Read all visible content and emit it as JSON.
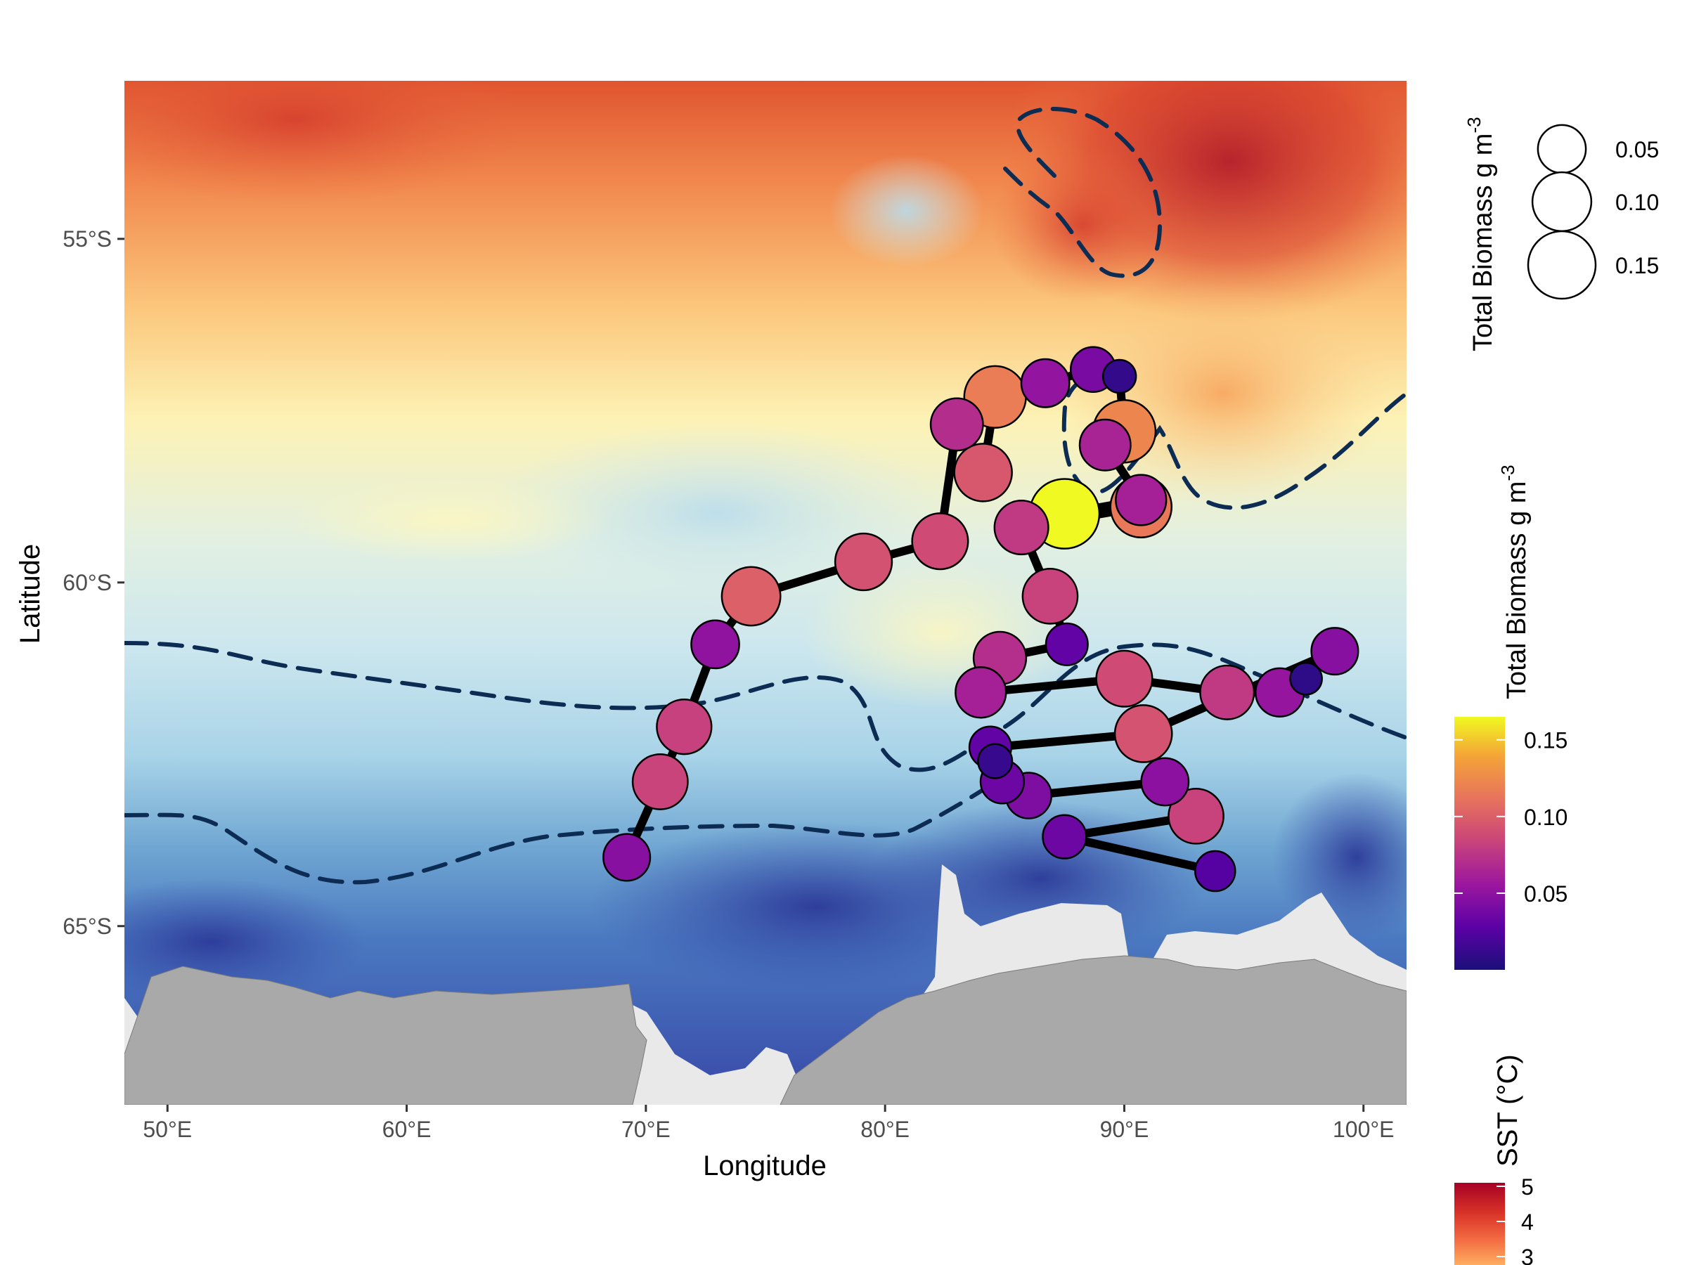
{
  "map": {
    "x_axis_title": "Longitude",
    "y_axis_title": "Latitude",
    "x_ticks": [
      "50°E",
      "60°E",
      "70°E",
      "80°E",
      "90°E",
      "100°E"
    ],
    "y_ticks": [
      "55°S",
      "60°S",
      "65°S"
    ],
    "lon_range": [
      48.2,
      101.8
    ],
    "lat_range": [
      -67.6,
      -52.7
    ],
    "x_tick_values": [
      50,
      60,
      70,
      80,
      90,
      100
    ],
    "y_tick_values": [
      -55,
      -60,
      -65
    ]
  },
  "legends": {
    "size_title": "Total Biomass g m",
    "size_superscript": "-3",
    "size_entries": [
      {
        "label": "0.05",
        "value": 0.05
      },
      {
        "label": "0.10",
        "value": 0.1
      },
      {
        "label": "0.15",
        "value": 0.15
      }
    ],
    "color_title": "Total Biomass g m",
    "color_superscript": "-3",
    "color_ticks": [
      {
        "label": "0.15",
        "value": 0.15
      },
      {
        "label": "0.10",
        "value": 0.1
      },
      {
        "label": "0.05",
        "value": 0.05
      }
    ],
    "color_range": [
      0.0,
      0.165
    ],
    "sst_title": "SST (°C)",
    "sst_ticks": [
      {
        "label": "5",
        "value": 5
      },
      {
        "label": "4",
        "value": 4
      },
      {
        "label": "3",
        "value": 3
      }
    ]
  },
  "colors": {
    "biomass_scale": [
      "#1b0f7a",
      "#5c01a6",
      "#9c179e",
      "#cc4778",
      "#e8745c",
      "#f4a636",
      "#f0f921"
    ],
    "sst_scale": [
      "#2a3e9a",
      "#4b79c0",
      "#9fcde6",
      "#fdfcc4",
      "#fdd58b",
      "#f48b4d",
      "#c9302c",
      "#a50026"
    ],
    "track": "#000000",
    "front_line": "#0d2c54",
    "land": "#a9a9a9",
    "ice_shelf": "#e9e9e9"
  },
  "chart_data": {
    "type": "scatter",
    "x_label": "Longitude",
    "y_label": "Latitude",
    "stations": [
      {
        "lon": 69.2,
        "lat": -64.0,
        "biomass": 0.046
      },
      {
        "lon": 70.6,
        "lat": -62.9,
        "biomass": 0.081
      },
      {
        "lon": 71.6,
        "lat": -62.1,
        "biomass": 0.079
      },
      {
        "lon": 72.9,
        "lat": -60.9,
        "biomass": 0.05
      },
      {
        "lon": 74.4,
        "lat": -60.2,
        "biomass": 0.098
      },
      {
        "lon": 79.1,
        "lat": -59.7,
        "biomass": 0.089
      },
      {
        "lon": 82.3,
        "lat": -59.4,
        "biomass": 0.085
      },
      {
        "lon": 83.0,
        "lat": -57.7,
        "biomass": 0.068
      },
      {
        "lon": 84.1,
        "lat": -58.4,
        "biomass": 0.093
      },
      {
        "lon": 84.6,
        "lat": -57.3,
        "biomass": 0.115
      },
      {
        "lon": 86.7,
        "lat": -57.1,
        "biomass": 0.051
      },
      {
        "lon": 88.7,
        "lat": -56.9,
        "biomass": 0.04
      },
      {
        "lon": 89.8,
        "lat": -57.0,
        "biomass": 0.01
      },
      {
        "lon": 90.0,
        "lat": -57.8,
        "biomass": 0.12
      },
      {
        "lon": 89.2,
        "lat": -58.0,
        "biomass": 0.062
      },
      {
        "lon": 90.7,
        "lat": -58.8,
        "biomass": 0.06
      },
      {
        "lon": 87.5,
        "lat": -59.0,
        "biomass": 0.165
      },
      {
        "lon": 90.7,
        "lat": -58.9,
        "biomass": 0.112
      },
      {
        "lon": 85.7,
        "lat": -59.2,
        "biomass": 0.075
      },
      {
        "lon": 86.9,
        "lat": -60.2,
        "biomass": 0.08
      },
      {
        "lon": 87.6,
        "lat": -60.9,
        "biomass": 0.03
      },
      {
        "lon": 84.8,
        "lat": -61.1,
        "biomass": 0.069
      },
      {
        "lon": 84.0,
        "lat": -61.6,
        "biomass": 0.06
      },
      {
        "lon": 90.0,
        "lat": -61.4,
        "biomass": 0.085
      },
      {
        "lon": 94.3,
        "lat": -61.6,
        "biomass": 0.075
      },
      {
        "lon": 96.5,
        "lat": -61.6,
        "biomass": 0.052
      },
      {
        "lon": 97.6,
        "lat": -61.4,
        "biomass": 0.008
      },
      {
        "lon": 98.8,
        "lat": -61.0,
        "biomass": 0.046
      },
      {
        "lon": 90.8,
        "lat": -62.2,
        "biomass": 0.09
      },
      {
        "lon": 84.4,
        "lat": -62.4,
        "biomass": 0.03
      },
      {
        "lon": 84.6,
        "lat": -62.6,
        "biomass": 0.012
      },
      {
        "lon": 84.9,
        "lat": -62.9,
        "biomass": 0.035
      },
      {
        "lon": 86.0,
        "lat": -63.1,
        "biomass": 0.042
      },
      {
        "lon": 91.7,
        "lat": -62.9,
        "biomass": 0.048
      },
      {
        "lon": 93.0,
        "lat": -63.4,
        "biomass": 0.08
      },
      {
        "lon": 87.5,
        "lat": -63.7,
        "biomass": 0.035
      },
      {
        "lon": 93.8,
        "lat": -64.2,
        "biomass": 0.025
      }
    ]
  }
}
